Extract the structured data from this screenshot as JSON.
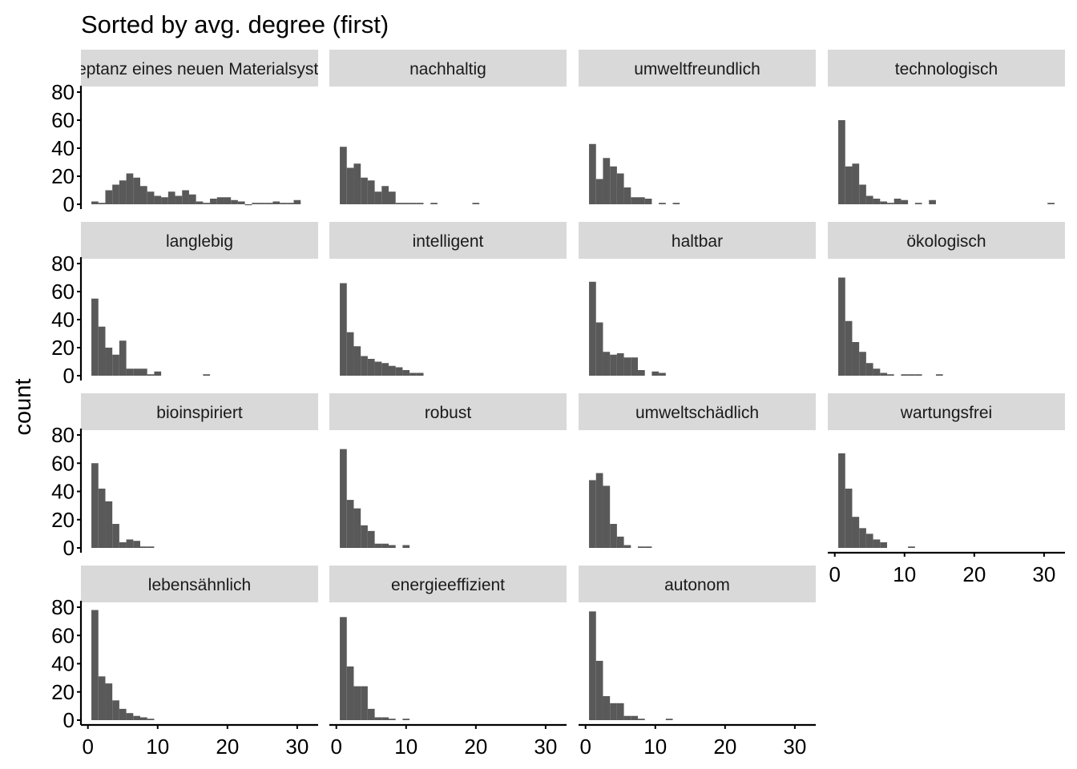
{
  "chart_data": {
    "type": "bar",
    "title": "Sorted by avg. degree (first)",
    "xlabel": "",
    "ylabel": "count",
    "xlim": [
      -1,
      33
    ],
    "ylim": [
      0,
      80
    ],
    "x_ticks": [
      0,
      10,
      20,
      30
    ],
    "y_ticks": [
      0,
      20,
      40,
      60,
      80
    ],
    "bin_width": 1,
    "grid": false,
    "bar_color": "#595959",
    "strip_color": "#d9d9d9",
    "panels": [
      {
        "label": "Akzeptanz eines neuen Materialsystems",
        "bins": [
          [
            1,
            2
          ],
          [
            2,
            1
          ],
          [
            3,
            10
          ],
          [
            4,
            14
          ],
          [
            5,
            17
          ],
          [
            6,
            22
          ],
          [
            7,
            19
          ],
          [
            8,
            13
          ],
          [
            9,
            9
          ],
          [
            10,
            6
          ],
          [
            11,
            5
          ],
          [
            12,
            9
          ],
          [
            13,
            6
          ],
          [
            14,
            10
          ],
          [
            15,
            7
          ],
          [
            16,
            2
          ],
          [
            17,
            1
          ],
          [
            18,
            4
          ],
          [
            19,
            5
          ],
          [
            20,
            5
          ],
          [
            21,
            3
          ],
          [
            22,
            2
          ],
          [
            23,
            0
          ],
          [
            24,
            1
          ],
          [
            25,
            1
          ],
          [
            26,
            1
          ],
          [
            27,
            2
          ],
          [
            28,
            1
          ],
          [
            29,
            1
          ],
          [
            30,
            3
          ]
        ]
      },
      {
        "label": "nachhaltig",
        "bins": [
          [
            1,
            41
          ],
          [
            2,
            26
          ],
          [
            3,
            29
          ],
          [
            4,
            19
          ],
          [
            5,
            17
          ],
          [
            6,
            9
          ],
          [
            7,
            13
          ],
          [
            8,
            9
          ],
          [
            9,
            1
          ],
          [
            10,
            1
          ],
          [
            11,
            1
          ],
          [
            12,
            1
          ],
          [
            14,
            1
          ],
          [
            20,
            1
          ]
        ]
      },
      {
        "label": "umweltfreundlich",
        "bins": [
          [
            1,
            43
          ],
          [
            2,
            18
          ],
          [
            3,
            33
          ],
          [
            4,
            27
          ],
          [
            5,
            22
          ],
          [
            6,
            12
          ],
          [
            7,
            5
          ],
          [
            8,
            5
          ],
          [
            9,
            4
          ],
          [
            11,
            1
          ],
          [
            13,
            1
          ]
        ]
      },
      {
        "label": "technologisch",
        "bins": [
          [
            1,
            60
          ],
          [
            2,
            27
          ],
          [
            3,
            29
          ],
          [
            4,
            14
          ],
          [
            5,
            6
          ],
          [
            6,
            4
          ],
          [
            7,
            2
          ],
          [
            8,
            1
          ],
          [
            9,
            4
          ],
          [
            10,
            3
          ],
          [
            12,
            1
          ],
          [
            14,
            3
          ],
          [
            31,
            1
          ]
        ]
      },
      {
        "label": "langlebig",
        "bins": [
          [
            1,
            55
          ],
          [
            2,
            35
          ],
          [
            3,
            20
          ],
          [
            4,
            15
          ],
          [
            5,
            25
          ],
          [
            6,
            5
          ],
          [
            7,
            5
          ],
          [
            8,
            5
          ],
          [
            9,
            1
          ],
          [
            10,
            3
          ],
          [
            17,
            1
          ]
        ]
      },
      {
        "label": "intelligent",
        "bins": [
          [
            1,
            66
          ],
          [
            2,
            31
          ],
          [
            3,
            21
          ],
          [
            4,
            14
          ],
          [
            5,
            12
          ],
          [
            6,
            10
          ],
          [
            7,
            9
          ],
          [
            8,
            7
          ],
          [
            9,
            6
          ],
          [
            10,
            4
          ],
          [
            11,
            2
          ],
          [
            12,
            2
          ]
        ]
      },
      {
        "label": "haltbar",
        "bins": [
          [
            1,
            67
          ],
          [
            2,
            38
          ],
          [
            3,
            17
          ],
          [
            4,
            15
          ],
          [
            5,
            16
          ],
          [
            6,
            13
          ],
          [
            7,
            13
          ],
          [
            8,
            4
          ],
          [
            10,
            3
          ],
          [
            11,
            2
          ]
        ]
      },
      {
        "label": "ökologisch",
        "bins": [
          [
            1,
            70
          ],
          [
            2,
            39
          ],
          [
            3,
            24
          ],
          [
            4,
            17
          ],
          [
            5,
            9
          ],
          [
            6,
            5
          ],
          [
            7,
            2
          ],
          [
            8,
            1
          ],
          [
            10,
            1
          ],
          [
            11,
            1
          ],
          [
            12,
            1
          ],
          [
            15,
            1
          ]
        ]
      },
      {
        "label": "bioinspiriert",
        "bins": [
          [
            1,
            60
          ],
          [
            2,
            42
          ],
          [
            3,
            33
          ],
          [
            4,
            17
          ],
          [
            5,
            4
          ],
          [
            6,
            6
          ],
          [
            7,
            5
          ],
          [
            8,
            1
          ],
          [
            9,
            1
          ]
        ]
      },
      {
        "label": "robust",
        "bins": [
          [
            1,
            70
          ],
          [
            2,
            34
          ],
          [
            3,
            28
          ],
          [
            4,
            16
          ],
          [
            5,
            12
          ],
          [
            6,
            3
          ],
          [
            7,
            3
          ],
          [
            8,
            2
          ],
          [
            10,
            2
          ]
        ]
      },
      {
        "label": "umweltschädlich",
        "bins": [
          [
            1,
            48
          ],
          [
            2,
            53
          ],
          [
            3,
            44
          ],
          [
            4,
            17
          ],
          [
            5,
            8
          ],
          [
            6,
            2
          ],
          [
            8,
            1
          ],
          [
            9,
            1
          ]
        ]
      },
      {
        "label": "wartungsfrei",
        "bins": [
          [
            1,
            67
          ],
          [
            2,
            42
          ],
          [
            3,
            22
          ],
          [
            4,
            14
          ],
          [
            5,
            10
          ],
          [
            6,
            6
          ],
          [
            7,
            4
          ],
          [
            11,
            1
          ]
        ]
      },
      {
        "label": "lebensähnlich",
        "bins": [
          [
            1,
            78
          ],
          [
            2,
            31
          ],
          [
            3,
            26
          ],
          [
            4,
            14
          ],
          [
            5,
            8
          ],
          [
            6,
            5
          ],
          [
            7,
            3
          ],
          [
            8,
            2
          ],
          [
            9,
            1
          ]
        ]
      },
      {
        "label": "energieeffizient",
        "bins": [
          [
            1,
            73
          ],
          [
            2,
            38
          ],
          [
            3,
            24
          ],
          [
            4,
            24
          ],
          [
            5,
            8
          ],
          [
            6,
            2
          ],
          [
            7,
            2
          ],
          [
            8,
            1
          ],
          [
            10,
            1
          ]
        ]
      },
      {
        "label": "autonom",
        "bins": [
          [
            1,
            77
          ],
          [
            2,
            42
          ],
          [
            3,
            17
          ],
          [
            4,
            12
          ],
          [
            5,
            12
          ],
          [
            6,
            3
          ],
          [
            7,
            3
          ],
          [
            8,
            1
          ],
          [
            12,
            1
          ]
        ]
      }
    ]
  }
}
